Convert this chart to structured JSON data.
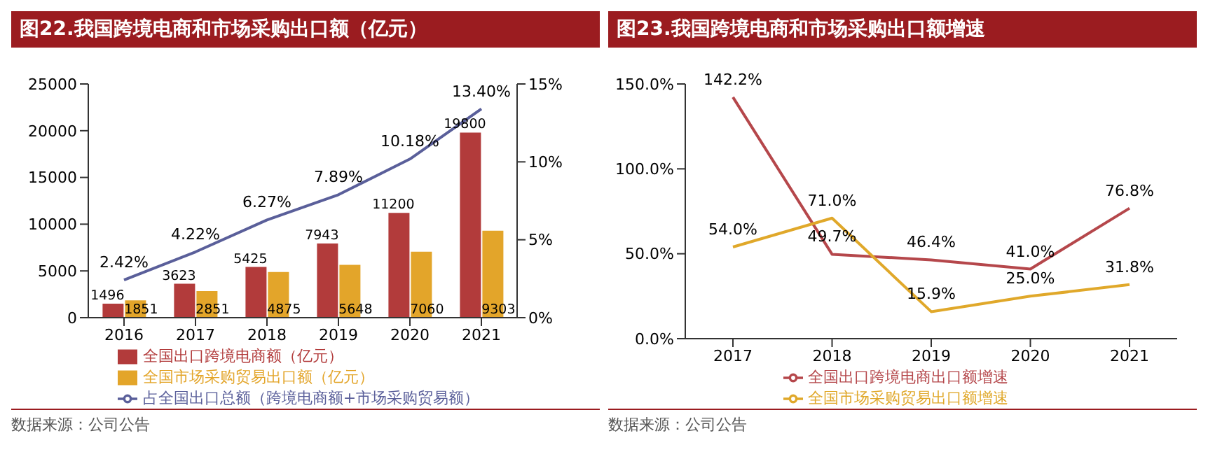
{
  "chart_data": [
    {
      "type": "bar",
      "title": "图22.我国跨境电商和市场采购出口额（亿元）",
      "categories": [
        "2016",
        "2017",
        "2018",
        "2019",
        "2020",
        "2021"
      ],
      "series": [
        {
          "name": "全国出口跨境电商额（亿元）",
          "color": "#b23b3b",
          "values": [
            1496,
            3623,
            5425,
            7943,
            11200,
            19800
          ],
          "value_labels": [
            "1496",
            "3623",
            "5425",
            "7943",
            "11200",
            "19800"
          ]
        },
        {
          "name": "全国市场采购贸易出口额（亿元）",
          "color": "#e3a52a",
          "values": [
            1851,
            2851,
            4875,
            5648,
            7060,
            9303
          ],
          "value_labels": [
            "1851",
            "2851",
            "4875",
            "5648",
            "7060",
            "9303"
          ]
        },
        {
          "name": "占全国出口总额（跨境电商额+市场采购贸易额）",
          "type": "line",
          "axis": "y2",
          "color": "#5a5f9a",
          "values": [
            2.42,
            4.22,
            6.27,
            7.89,
            10.18,
            13.4
          ],
          "value_labels": [
            "2.42%",
            "4.22%",
            "6.27%",
            "7.89%",
            "10.18%",
            "13.40%"
          ]
        }
      ],
      "ylim": [
        0,
        25000
      ],
      "yticks": [
        0,
        5000,
        10000,
        15000,
        20000,
        25000
      ],
      "y2lim": [
        0,
        15
      ],
      "y2ticks": [
        {
          "value": 0,
          "label": "0%"
        },
        {
          "value": 5,
          "label": "5%"
        },
        {
          "value": 10,
          "label": "10%"
        },
        {
          "value": 15,
          "label": "15%"
        }
      ],
      "legend": "bottom",
      "annotations": [
        "数据来源：公司公告"
      ]
    },
    {
      "type": "line",
      "title": "图23.我国跨境电商和市场采购出口额增速",
      "categories": [
        "2017",
        "2018",
        "2019",
        "2020",
        "2021"
      ],
      "series": [
        {
          "name": "全国出口跨境电商出口额增速",
          "color": "#b5474b",
          "values": [
            142.2,
            49.7,
            46.4,
            41.0,
            76.8
          ],
          "value_labels": [
            "142.2%",
            "49.7%",
            "46.4%",
            "41.0%",
            "76.8%"
          ]
        },
        {
          "name": "全国市场采购贸易出口额增速",
          "color": "#e0a82a",
          "values": [
            54.0,
            71.0,
            15.9,
            25.0,
            31.8
          ],
          "value_labels": [
            "54.0%",
            "71.0%",
            "15.9%",
            "25.0%",
            "31.8%"
          ]
        }
      ],
      "ylim": [
        0,
        150
      ],
      "yticks": [
        {
          "value": 0,
          "label": "0.0%"
        },
        {
          "value": 50,
          "label": "50.0%"
        },
        {
          "value": 100,
          "label": "100.0%"
        },
        {
          "value": 150,
          "label": "150.0%"
        }
      ],
      "legend": "bottom",
      "annotations": [
        "数据来源：公司公告"
      ]
    }
  ]
}
